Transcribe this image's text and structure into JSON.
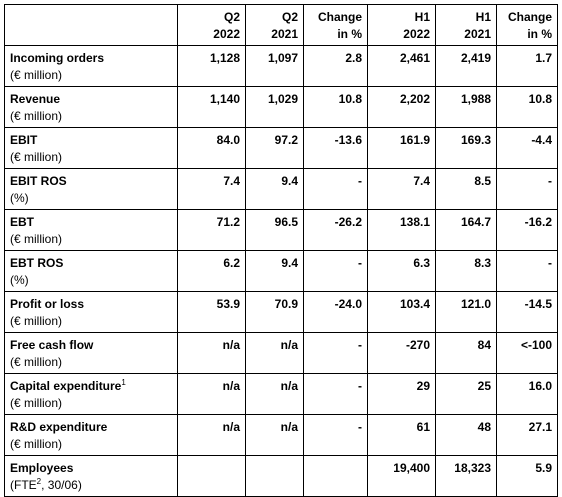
{
  "columns": [
    {
      "line1": "",
      "line2": ""
    },
    {
      "line1": "Q2",
      "line2": "2022"
    },
    {
      "line1": "Q2",
      "line2": "2021"
    },
    {
      "line1": "Change",
      "line2": "in %"
    },
    {
      "line1": "H1",
      "line2": "2022"
    },
    {
      "line1": "H1",
      "line2": "2021"
    },
    {
      "line1": "Change",
      "line2": "in %"
    }
  ],
  "rows": [
    {
      "label": "Incoming orders",
      "sup": "",
      "sub": "(€ million)",
      "sub_sup": "",
      "sub_rest": "",
      "values": [
        "1,128",
        "1,097",
        "2.8",
        "2,461",
        "2,419",
        "1.7"
      ]
    },
    {
      "label": "Revenue",
      "sup": "",
      "sub": "(€ million)",
      "sub_sup": "",
      "sub_rest": "",
      "values": [
        "1,140",
        "1,029",
        "10.8",
        "2,202",
        "1,988",
        "10.8"
      ]
    },
    {
      "label": "EBIT",
      "sup": "",
      "sub": "(€ million)",
      "sub_sup": "",
      "sub_rest": "",
      "values": [
        "84.0",
        "97.2",
        "-13.6",
        "161.9",
        "169.3",
        "-4.4"
      ]
    },
    {
      "label": "EBIT ROS",
      "sup": "",
      "sub": "(%)",
      "sub_sup": "",
      "sub_rest": "",
      "values": [
        "7.4",
        "9.4",
        "-",
        "7.4",
        "8.5",
        "-"
      ]
    },
    {
      "label": "EBT",
      "sup": "",
      "sub": "(€ million)",
      "sub_sup": "",
      "sub_rest": "",
      "values": [
        "71.2",
        "96.5",
        "-26.2",
        "138.1",
        "164.7",
        "-16.2"
      ]
    },
    {
      "label": "EBT ROS",
      "sup": "",
      "sub": "(%)",
      "sub_sup": "",
      "sub_rest": "",
      "values": [
        "6.2",
        "9.4",
        "-",
        "6.3",
        "8.3",
        "-"
      ]
    },
    {
      "label": "Profit or loss",
      "sup": "",
      "sub": "(€ million)",
      "sub_sup": "",
      "sub_rest": "",
      "values": [
        "53.9",
        "70.9",
        "-24.0",
        "103.4",
        "121.0",
        "-14.5"
      ]
    },
    {
      "label": "Free cash flow",
      "sup": "",
      "sub": "(€ million)",
      "sub_sup": "",
      "sub_rest": "",
      "values": [
        "n/a",
        "n/a",
        "-",
        "-270",
        "84",
        "<-100"
      ]
    },
    {
      "label": "Capital expenditure",
      "sup": "1",
      "sub": "(€ million)",
      "sub_sup": "",
      "sub_rest": "",
      "values": [
        "n/a",
        "n/a",
        "-",
        "29",
        "25",
        "16.0"
      ]
    },
    {
      "label": "R&D expenditure",
      "sup": "",
      "sub": "(€ million)",
      "sub_sup": "",
      "sub_rest": "",
      "values": [
        "n/a",
        "n/a",
        "-",
        "61",
        "48",
        "27.1"
      ]
    },
    {
      "label": "Employees",
      "sup": "",
      "sub": "(FTE",
      "sub_sup": "2",
      "sub_rest": ", 30/06)",
      "values": [
        "",
        "",
        "",
        "19,400",
        "18,323",
        "5.9"
      ]
    }
  ]
}
